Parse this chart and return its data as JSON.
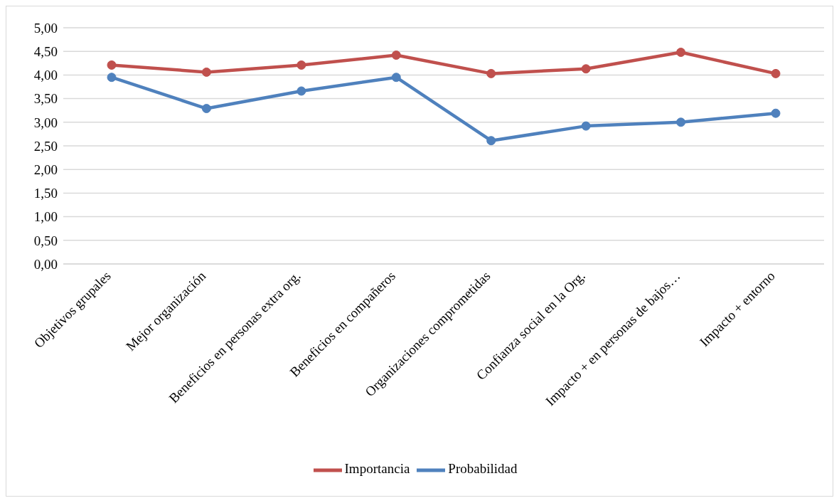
{
  "chart_data": {
    "type": "line",
    "categories": [
      "Objetivos grupales",
      "Mejor organización",
      "Beneficios en personas extra org.",
      "Beneficios en compañeros",
      "Organizaciones comprometidas",
      "Confianza social en la Org.",
      "Impacto +  en personas de bajos…",
      "Impacto + entorno"
    ],
    "series": [
      {
        "name": "Probabilidad",
        "color": "#4f81bd",
        "values": [
          3.95,
          3.29,
          3.66,
          3.95,
          2.61,
          2.92,
          3.0,
          3.19
        ]
      },
      {
        "name": "Importancia",
        "color": "#c0504d",
        "values": [
          4.21,
          4.06,
          4.21,
          4.42,
          4.03,
          4.13,
          4.48,
          4.03
        ]
      }
    ],
    "ylim": [
      0,
      5
    ],
    "yticks": [
      {
        "value": 0,
        "label": "0,00"
      },
      {
        "value": 0.5,
        "label": "0,50"
      },
      {
        "value": 1,
        "label": "1,00"
      },
      {
        "value": 1.5,
        "label": "1,50"
      },
      {
        "value": 2,
        "label": "2,00"
      },
      {
        "value": 2.5,
        "label": "2,50"
      },
      {
        "value": 3,
        "label": "3,00"
      },
      {
        "value": 3.5,
        "label": "3,50"
      },
      {
        "value": 4,
        "label": "4,00"
      },
      {
        "value": 4.5,
        "label": "4,50"
      },
      {
        "value": 5,
        "label": "5,00"
      }
    ],
    "grid": "y",
    "legend": "bottom",
    "marker": "circle",
    "line_style": "solid"
  }
}
